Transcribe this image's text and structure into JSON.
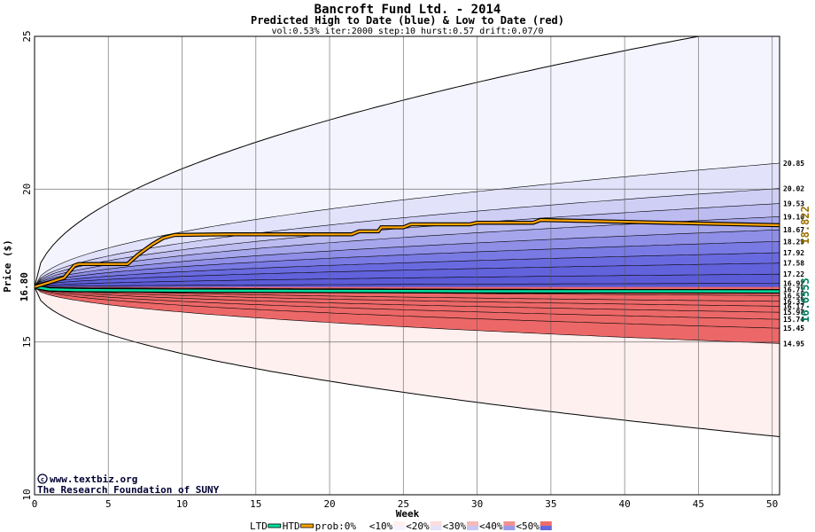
{
  "chart_data": {
    "type": "area",
    "title": "Bancroft Fund Ltd. - 2014",
    "subtitle": "Predicted High to Date (blue) &  Low to Date (red)",
    "params": "vol:0.53% iter:2000 step:10 hurst:0.57 drift:0.07/0",
    "xlabel": "Week",
    "ylabel": "Price ($)",
    "xlim": [
      0,
      50.5
    ],
    "ylim": [
      10,
      25
    ],
    "x_ticks": [
      "0",
      "5",
      "10",
      "15",
      "20",
      "25",
      "30",
      "35",
      "40",
      "45",
      "50"
    ],
    "y_ticks": [
      "10",
      "15",
      "20",
      "25"
    ],
    "start_price": "16.80",
    "grid": true,
    "colors": {
      "htd_line": "#ffa500",
      "ltd_line": "#00e0a0",
      "htd_label": "#9a7000",
      "ltd_label": "#008060",
      "band_outer_blue": "#f4f4ff",
      "band_outer_red": "#fff0f0"
    },
    "upper_bands": [
      "20.85",
      "20.02",
      "19.53",
      "19.10",
      "18.67",
      "18.29",
      "17.92",
      "17.58",
      "17.22"
    ],
    "middle_bands": [
      "16.92",
      "16.71",
      "16.52",
      "16.33",
      "16.17"
    ],
    "lower_bands": [
      "15.97",
      "15.74",
      "15.45",
      "14.95"
    ],
    "upper_band_values": [
      20.85,
      20.02,
      19.53,
      19.1,
      18.67,
      18.29,
      17.92,
      17.58,
      17.22,
      16.92,
      16.71
    ],
    "lower_band_values": [
      16.52,
      16.33,
      16.17,
      15.97,
      15.74,
      15.45,
      14.95
    ],
    "outer_high_end": 25.0,
    "outer_high_reach_week": 45,
    "outer_low_end": 11.9,
    "htd_final": "18.822",
    "ltd_final": "16.6553",
    "htd_series": {
      "x": [
        0,
        1,
        2,
        2.7,
        3,
        6.3,
        7,
        8,
        8.7,
        9.5,
        13,
        21.5,
        22,
        23.3,
        23.5,
        25,
        25.5,
        29.5,
        30,
        33.8,
        34.3,
        50.5
      ],
      "y": [
        16.8,
        16.95,
        17.1,
        17.5,
        17.55,
        17.55,
        17.85,
        18.2,
        18.4,
        18.5,
        18.52,
        18.52,
        18.62,
        18.62,
        18.75,
        18.75,
        18.85,
        18.85,
        18.9,
        18.9,
        18.99,
        18.82
      ]
    },
    "ltd_series": {
      "x": [
        0,
        1,
        3,
        10,
        20,
        30,
        40,
        50.5
      ],
      "y": [
        16.8,
        16.72,
        16.7,
        16.68,
        16.67,
        16.66,
        16.66,
        16.6553
      ]
    },
    "legend": {
      "ltd": "LTD",
      "htd": "HTD",
      "items": [
        "prob:0%",
        "<10%",
        "<20%",
        "<30%",
        "<40%",
        "<50%"
      ]
    },
    "credits": {
      "site": "www.textbiz.org",
      "org": "The Research Foundation of SUNY"
    }
  }
}
